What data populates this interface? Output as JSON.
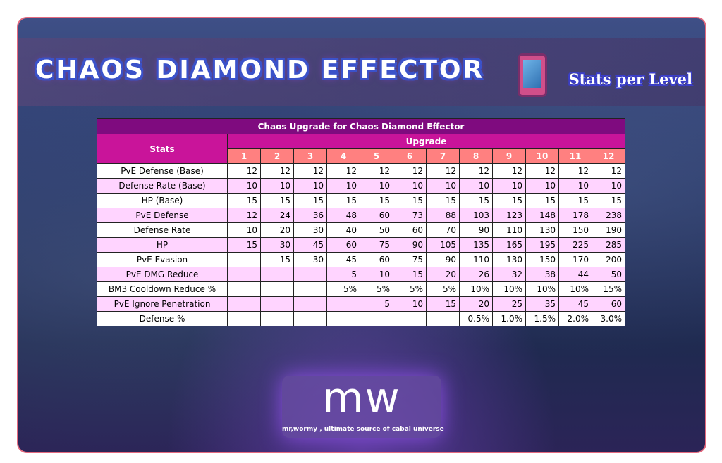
{
  "header": {
    "title": "CHAOS DIAMOND EFFECTOR",
    "icon": "mobile-phone-icon",
    "subtitle": "Stats per Level"
  },
  "table": {
    "caption": "Chaos Upgrade for Chaos Diamond Effector",
    "stats_header": "Stats",
    "upgrade_header": "Upgrade",
    "levels": [
      "1",
      "2",
      "3",
      "4",
      "5",
      "6",
      "7",
      "8",
      "9",
      "10",
      "11",
      "12"
    ],
    "rows": [
      {
        "name": "PvE Defense (Base)",
        "values": [
          "12",
          "12",
          "12",
          "12",
          "12",
          "12",
          "12",
          "12",
          "12",
          "12",
          "12",
          "12"
        ]
      },
      {
        "name": "Defense Rate (Base)",
        "values": [
          "10",
          "10",
          "10",
          "10",
          "10",
          "10",
          "10",
          "10",
          "10",
          "10",
          "10",
          "10"
        ]
      },
      {
        "name": "HP (Base)",
        "values": [
          "15",
          "15",
          "15",
          "15",
          "15",
          "15",
          "15",
          "15",
          "15",
          "15",
          "15",
          "15"
        ]
      },
      {
        "name": "PvE Defense",
        "values": [
          "12",
          "24",
          "36",
          "48",
          "60",
          "73",
          "88",
          "103",
          "123",
          "148",
          "178",
          "238"
        ]
      },
      {
        "name": "Defense Rate",
        "values": [
          "10",
          "20",
          "30",
          "40",
          "50",
          "60",
          "70",
          "90",
          "110",
          "130",
          "150",
          "190"
        ]
      },
      {
        "name": "HP",
        "values": [
          "15",
          "30",
          "45",
          "60",
          "75",
          "90",
          "105",
          "135",
          "165",
          "195",
          "225",
          "285"
        ]
      },
      {
        "name": "PvE Evasion",
        "values": [
          "",
          "15",
          "30",
          "45",
          "60",
          "75",
          "90",
          "110",
          "130",
          "150",
          "170",
          "200"
        ]
      },
      {
        "name": "PvE DMG Reduce",
        "values": [
          "",
          "",
          "",
          "5",
          "10",
          "15",
          "20",
          "26",
          "32",
          "38",
          "44",
          "50"
        ]
      },
      {
        "name": "BM3 Cooldown Reduce %",
        "values": [
          "",
          "",
          "",
          "5%",
          "5%",
          "5%",
          "5%",
          "10%",
          "10%",
          "10%",
          "10%",
          "15%"
        ]
      },
      {
        "name": "PvE Ignore Penetration",
        "values": [
          "",
          "",
          "",
          "",
          "5",
          "10",
          "15",
          "20",
          "25",
          "35",
          "45",
          "60"
        ]
      },
      {
        "name": "Defense %",
        "values": [
          "",
          "",
          "",
          "",
          "",
          "",
          "",
          "0.5%",
          "1.0%",
          "1.5%",
          "2.0%",
          "3.0%"
        ]
      }
    ]
  },
  "logo": {
    "text": "mw",
    "tagline": "mr,wormy , ultimate source of cabal universe"
  },
  "colors": {
    "caption_bg": "#7f0b7f",
    "header_bg": "#c9149a",
    "level_bg": "#ff8080",
    "alt_row": "#ffd4ff",
    "border": "#e46a7f"
  }
}
